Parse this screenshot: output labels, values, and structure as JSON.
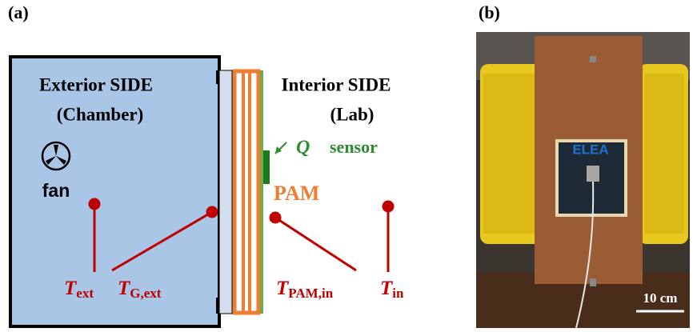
{
  "panel_a": {
    "label": "(a)",
    "exterior": {
      "title": "Exterior SIDE",
      "subtitle": "(Chamber)",
      "fan": "fan"
    },
    "interior": {
      "title": "Interior SIDE",
      "subtitle": "(Lab)"
    },
    "heat_flux": "Q",
    "sensor": "sensor",
    "pam": "PAM",
    "temperatures": [
      {
        "symbol": "T",
        "subscript": "ext"
      },
      {
        "symbol": "T",
        "subscript": "G,ext"
      },
      {
        "symbol": "T",
        "subscript": "PAM,in"
      },
      {
        "symbol": "T",
        "subscript": "in"
      }
    ]
  },
  "panel_b": {
    "label": "(b)",
    "sample": "ELEA",
    "scale_bar": "10 cm"
  }
}
